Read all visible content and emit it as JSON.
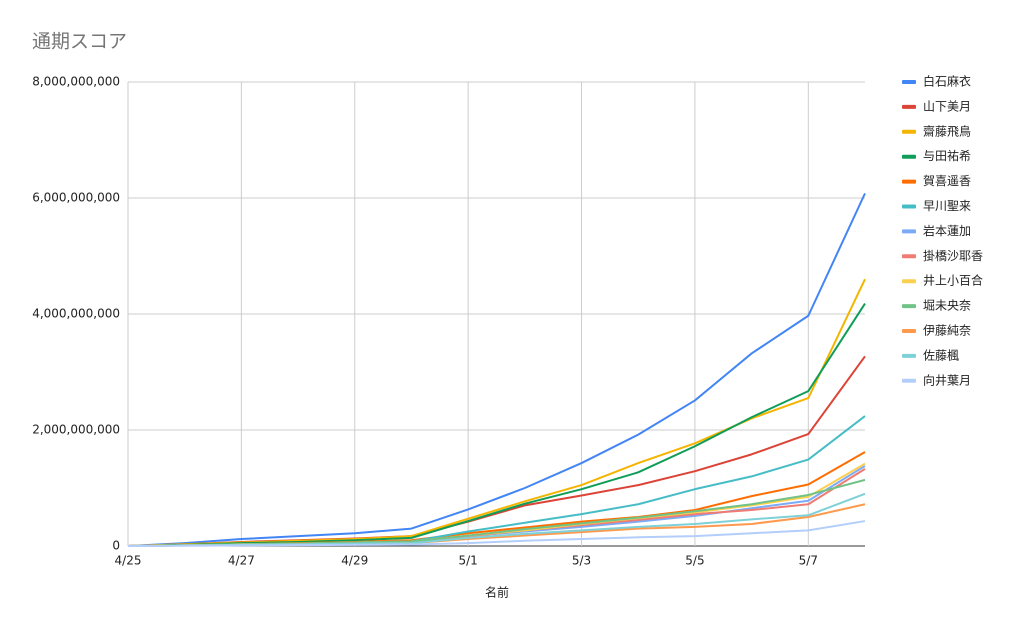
{
  "chart_data": {
    "type": "line",
    "title": "通期スコア",
    "x_label": "名前",
    "categories": [
      "4/25",
      null,
      "4/27",
      null,
      "4/29",
      null,
      "5/1",
      null,
      "5/3",
      null,
      "5/5",
      null,
      "5/7",
      null
    ],
    "ylim": [
      0,
      8000000000
    ],
    "yticks": [
      0,
      {
        "value": 2000000000,
        "label": "2,000,000,000"
      },
      {
        "value": 4000000000,
        "label": "4,000,000,000"
      },
      {
        "value": 6000000000,
        "label": "6,000,000,000"
      },
      {
        "value": 8000000000,
        "label": "8,000,000,000"
      }
    ],
    "grid": true,
    "legend": "right",
    "series": [
      {
        "name": "白石麻衣",
        "color": "#4285f4",
        "values": [
          0,
          50000000,
          120000000,
          170000000,
          220000000,
          300000000,
          630000000,
          1000000000,
          1430000000,
          1920000000,
          2510000000,
          3320000000,
          3970000000,
          6080000000
        ]
      },
      {
        "name": "山下美月",
        "color": "#db4437",
        "values": [
          0,
          30000000,
          70000000,
          100000000,
          130000000,
          170000000,
          420000000,
          700000000,
          870000000,
          1050000000,
          1290000000,
          1580000000,
          1930000000,
          3270000000
        ]
      },
      {
        "name": "齋藤飛鳥",
        "color": "#f4b400",
        "values": [
          0,
          30000000,
          60000000,
          90000000,
          120000000,
          170000000,
          470000000,
          770000000,
          1050000000,
          1430000000,
          1770000000,
          2200000000,
          2550000000,
          4600000000
        ]
      },
      {
        "name": "与田祐希",
        "color": "#0f9d58",
        "values": [
          0,
          20000000,
          50000000,
          70000000,
          100000000,
          140000000,
          430000000,
          730000000,
          980000000,
          1270000000,
          1720000000,
          2220000000,
          2670000000,
          4180000000
        ]
      },
      {
        "name": "賀喜遥香",
        "color": "#ff6d01",
        "values": [
          0,
          10000000,
          30000000,
          50000000,
          70000000,
          100000000,
          220000000,
          320000000,
          420000000,
          500000000,
          620000000,
          860000000,
          1060000000,
          1620000000
        ]
      },
      {
        "name": "早川聖来",
        "color": "#46bdc6",
        "values": [
          0,
          10000000,
          30000000,
          40000000,
          60000000,
          80000000,
          250000000,
          400000000,
          550000000,
          720000000,
          980000000,
          1200000000,
          1490000000,
          2240000000
        ]
      },
      {
        "name": "岩本蓮加",
        "color": "#7baaf7",
        "values": [
          0,
          10000000,
          20000000,
          30000000,
          40000000,
          60000000,
          170000000,
          250000000,
          330000000,
          420000000,
          520000000,
          650000000,
          780000000,
          1380000000
        ]
      },
      {
        "name": "掛橋沙耶香",
        "color": "#f07b72",
        "values": [
          0,
          10000000,
          20000000,
          30000000,
          40000000,
          50000000,
          170000000,
          270000000,
          360000000,
          450000000,
          550000000,
          620000000,
          720000000,
          1330000000
        ]
      },
      {
        "name": "井上小百合",
        "color": "#fcd04f",
        "values": [
          0,
          10000000,
          30000000,
          40000000,
          60000000,
          80000000,
          180000000,
          270000000,
          380000000,
          480000000,
          580000000,
          700000000,
          850000000,
          1420000000
        ]
      },
      {
        "name": "堀未央奈",
        "color": "#71c287",
        "values": [
          0,
          10000000,
          30000000,
          40000000,
          60000000,
          80000000,
          180000000,
          290000000,
          390000000,
          490000000,
          600000000,
          720000000,
          880000000,
          1140000000
        ]
      },
      {
        "name": "伊藤純奈",
        "color": "#ff994d",
        "values": [
          0,
          10000000,
          20000000,
          30000000,
          40000000,
          50000000,
          120000000,
          180000000,
          240000000,
          300000000,
          330000000,
          380000000,
          500000000,
          720000000
        ]
      },
      {
        "name": "佐藤楓",
        "color": "#7ed1d7",
        "values": [
          0,
          10000000,
          20000000,
          30000000,
          40000000,
          50000000,
          140000000,
          210000000,
          270000000,
          330000000,
          380000000,
          460000000,
          530000000,
          900000000
        ]
      },
      {
        "name": "向井葉月",
        "color": "#b3cefb",
        "values": [
          0,
          5000000,
          10000000,
          15000000,
          20000000,
          25000000,
          50000000,
          90000000,
          120000000,
          150000000,
          170000000,
          220000000,
          270000000,
          430000000
        ]
      }
    ]
  }
}
